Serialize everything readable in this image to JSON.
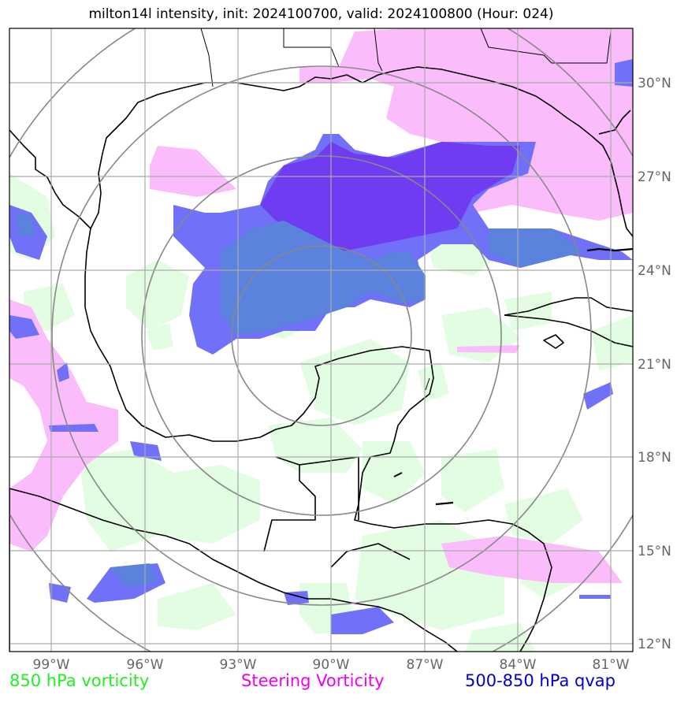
{
  "title": "milton14l intensity, init: 2024100700, valid: 2024100800 (Hour: 024)",
  "lon_labels": [
    "99°W",
    "96°W",
    "93°W",
    "90°W",
    "87°W",
    "84°W",
    "81°W"
  ],
  "lat_labels": [
    "30°N",
    "27°N",
    "24°N",
    "21°N",
    "18°N",
    "15°N",
    "12°N"
  ],
  "legend": [
    {
      "label": "850 hPa vorticity",
      "color": "#22ee22"
    },
    {
      "label": "Steering Vorticity",
      "color": "#ee00ee"
    },
    {
      "label": "500-850 hPa qvap",
      "color": "#0000cc"
    }
  ],
  "colors": {
    "vorticity_850": "#e2fde2",
    "steering": "#fbbcfb",
    "qvap": "#7070f8",
    "qvap_dark": "#6f3cf2",
    "qvap_mid": "#5b82dc",
    "grid": "#aaaaaa",
    "rings": "#888888",
    "coast": "#000000"
  }
}
